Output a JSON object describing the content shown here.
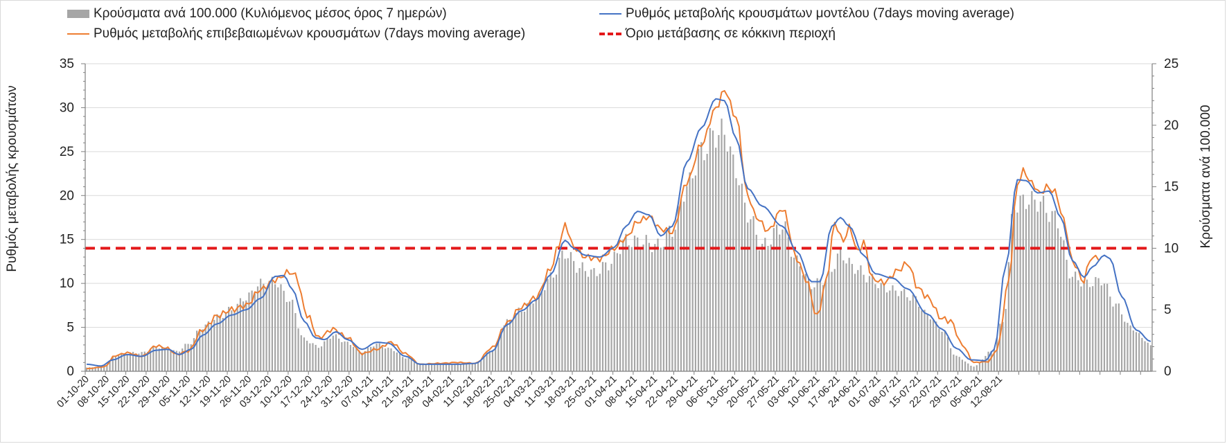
{
  "chart_data": {
    "type": "bar+line",
    "legend": {
      "bars": "Κρούσματα ανά 100.000 (Κυλιόμενος μέσος όρος 7 ημερών)",
      "model": "Ρυθμός μεταβολής κρουσμάτων μοντέλου (7days moving average)",
      "confirmed": "Ρυθμός μεταβολής επιβεβαιωμένων κρουσμάτων (7days moving average)",
      "threshold": "Όριο μετάβασης σε κόκκινη περιοχή"
    },
    "ylabel_left": "Ρυθμός μεταβολής κρουσμάτων",
    "ylabel_right": "Κρούσματα ανά 100.000",
    "ylim_left": [
      0,
      35
    ],
    "ylim_right": [
      0,
      25
    ],
    "yticks_left": [
      "0",
      "5",
      "10",
      "15",
      "20",
      "25",
      "30",
      "35"
    ],
    "yticks_right": [
      "0",
      "5",
      "10",
      "15",
      "20",
      "25"
    ],
    "xticks": [
      "01-10-20",
      "08-10-20",
      "15-10-20",
      "22-10-20",
      "29-10-20",
      "05-11-20",
      "12-11-20",
      "19-11-20",
      "26-11-20",
      "03-12-20",
      "10-12-20",
      "17-12-20",
      "24-12-20",
      "31-12-20",
      "07-01-21",
      "14-01-21",
      "21-01-21",
      "28-01-21",
      "04-02-21",
      "11-02-21",
      "18-02-21",
      "25-02-21",
      "04-03-21",
      "11-03-21",
      "18-03-21",
      "25-03-21",
      "01-04-21",
      "08-04-21",
      "15-04-21",
      "22-04-21",
      "29-04-21",
      "06-05-21",
      "13-05-21",
      "20-05-21",
      "27-05-21",
      "03-06-21",
      "10-06-21",
      "17-06-21",
      "24-06-21",
      "01-07-21",
      "08-07-21",
      "15-07-21",
      "22-07-21",
      "29-07-21",
      "05-08-21",
      "12-08-21"
    ],
    "threshold_left": 14,
    "days": 322,
    "bars_anchors": [
      [
        0,
        0.3
      ],
      [
        6,
        0.4
      ],
      [
        10,
        1.3
      ],
      [
        14,
        1.5
      ],
      [
        19,
        1.5
      ],
      [
        24,
        2.0
      ],
      [
        28,
        1.8
      ],
      [
        31,
        1.6
      ],
      [
        35,
        2.2
      ],
      [
        40,
        3.6
      ],
      [
        45,
        4.4
      ],
      [
        50,
        5.0
      ],
      [
        55,
        6.0
      ],
      [
        60,
        7.1
      ],
      [
        65,
        7.3
      ],
      [
        70,
        5.8
      ],
      [
        75,
        2.6
      ],
      [
        80,
        2.0
      ],
      [
        85,
        2.9
      ],
      [
        90,
        2.3
      ],
      [
        95,
        1.6
      ],
      [
        100,
        2.2
      ],
      [
        105,
        1.8
      ],
      [
        110,
        1.1
      ],
      [
        115,
        0.6
      ],
      [
        122,
        0.6
      ],
      [
        128,
        0.6
      ],
      [
        134,
        0.6
      ],
      [
        140,
        1.8
      ],
      [
        145,
        4.0
      ],
      [
        150,
        5.0
      ],
      [
        155,
        5.9
      ],
      [
        160,
        7.6
      ],
      [
        165,
        9.6
      ],
      [
        170,
        8.4
      ],
      [
        175,
        8.0
      ],
      [
        180,
        8.7
      ],
      [
        186,
        10.6
      ],
      [
        192,
        10.5
      ],
      [
        197,
        10.2
      ],
      [
        202,
        11.5
      ],
      [
        207,
        15.0
      ],
      [
        212,
        17.8
      ],
      [
        217,
        19.3
      ],
      [
        220,
        19.4
      ],
      [
        224,
        16.3
      ],
      [
        228,
        12.8
      ],
      [
        233,
        10.2
      ],
      [
        240,
        11.8
      ],
      [
        245,
        8.9
      ],
      [
        250,
        7.0
      ],
      [
        255,
        7.5
      ],
      [
        260,
        9.5
      ],
      [
        265,
        8.4
      ],
      [
        270,
        7.6
      ],
      [
        275,
        6.8
      ],
      [
        280,
        6.5
      ],
      [
        285,
        6.0
      ],
      [
        290,
        4.6
      ],
      [
        295,
        3.4
      ],
      [
        300,
        1.2
      ],
      [
        306,
        0.4
      ],
      [
        312,
        1.6
      ],
      [
        316,
        4.0
      ],
      [
        320,
        13.5
      ],
      [
        324,
        13.9
      ],
      [
        328,
        13.8
      ],
      [
        334,
        12.5
      ],
      [
        340,
        7.7
      ],
      [
        345,
        7.1
      ],
      [
        350,
        7.4
      ],
      [
        355,
        5.4
      ],
      [
        360,
        3.6
      ],
      [
        365,
        2.6
      ],
      [
        367,
        2.0
      ]
    ],
    "confirmed_anchors": [
      [
        0,
        0.3
      ],
      [
        6,
        0.5
      ],
      [
        10,
        1.8
      ],
      [
        14,
        2.1
      ],
      [
        19,
        1.7
      ],
      [
        24,
        2.9
      ],
      [
        28,
        2.6
      ],
      [
        31,
        1.9
      ],
      [
        35,
        2.3
      ],
      [
        40,
        4.7
      ],
      [
        45,
        6.3
      ],
      [
        50,
        7.0
      ],
      [
        55,
        7.5
      ],
      [
        60,
        9.3
      ],
      [
        65,
        10.4
      ],
      [
        70,
        11.3
      ],
      [
        72,
        10.9
      ],
      [
        76,
        6.4
      ],
      [
        80,
        3.8
      ],
      [
        85,
        4.8
      ],
      [
        90,
        3.8
      ],
      [
        95,
        2.0
      ],
      [
        100,
        2.5
      ],
      [
        105,
        3.3
      ],
      [
        110,
        2.0
      ],
      [
        115,
        0.8
      ],
      [
        122,
        0.9
      ],
      [
        128,
        1.0
      ],
      [
        134,
        0.9
      ],
      [
        140,
        2.7
      ],
      [
        145,
        5.5
      ],
      [
        150,
        7.3
      ],
      [
        155,
        8.4
      ],
      [
        160,
        11.6
      ],
      [
        163,
        14.5
      ],
      [
        165,
        16.7
      ],
      [
        168,
        14.1
      ],
      [
        172,
        13.0
      ],
      [
        177,
        12.8
      ],
      [
        182,
        14.0
      ],
      [
        186,
        15.2
      ],
      [
        190,
        17.0
      ],
      [
        194,
        17.6
      ],
      [
        198,
        16.2
      ],
      [
        202,
        15.8
      ],
      [
        207,
        21.5
      ],
      [
        212,
        25.8
      ],
      [
        217,
        29.9
      ],
      [
        220,
        32.0
      ],
      [
        224,
        28.9
      ],
      [
        228,
        20.0
      ],
      [
        231,
        17.5
      ],
      [
        235,
        16.0
      ],
      [
        240,
        18.5
      ],
      [
        245,
        12.8
      ],
      [
        248,
        10.5
      ],
      [
        252,
        6.2
      ],
      [
        255,
        10.2
      ],
      [
        258,
        16.8
      ],
      [
        261,
        14.8
      ],
      [
        263,
        16.4
      ],
      [
        266,
        13.6
      ],
      [
        268,
        14.7
      ],
      [
        271,
        10.5
      ],
      [
        275,
        10.1
      ],
      [
        280,
        11.5
      ],
      [
        283,
        12.3
      ],
      [
        287,
        9.4
      ],
      [
        290,
        8.4
      ],
      [
        295,
        6.0
      ],
      [
        298,
        5.7
      ],
      [
        302,
        3.0
      ],
      [
        306,
        1.0
      ],
      [
        311,
        1.1
      ],
      [
        314,
        2.5
      ],
      [
        318,
        10.2
      ],
      [
        321,
        21.2
      ],
      [
        323,
        22.8
      ],
      [
        326,
        21.4
      ],
      [
        329,
        20.2
      ],
      [
        331,
        21.0
      ],
      [
        334,
        20.4
      ],
      [
        337,
        17.2
      ],
      [
        340,
        12.5
      ],
      [
        344,
        10.2
      ],
      [
        346,
        12.8
      ],
      [
        349,
        13.0
      ]
    ],
    "model_anchors": [
      [
        0,
        0.8
      ],
      [
        5,
        0.6
      ],
      [
        9,
        1.3
      ],
      [
        14,
        1.9
      ],
      [
        19,
        1.7
      ],
      [
        24,
        2.4
      ],
      [
        28,
        2.5
      ],
      [
        32,
        1.9
      ],
      [
        36,
        2.5
      ],
      [
        40,
        4.1
      ],
      [
        45,
        5.4
      ],
      [
        50,
        6.4
      ],
      [
        55,
        7.0
      ],
      [
        60,
        8.3
      ],
      [
        65,
        10.8
      ],
      [
        68,
        10.9
      ],
      [
        71,
        9.3
      ],
      [
        75,
        5.7
      ],
      [
        79,
        3.8
      ],
      [
        82,
        3.6
      ],
      [
        86,
        4.5
      ],
      [
        90,
        3.6
      ],
      [
        95,
        2.5
      ],
      [
        100,
        3.3
      ],
      [
        104,
        3.2
      ],
      [
        110,
        1.7
      ],
      [
        115,
        0.8
      ],
      [
        122,
        0.8
      ],
      [
        128,
        0.8
      ],
      [
        134,
        0.9
      ],
      [
        140,
        2.3
      ],
      [
        145,
        5.3
      ],
      [
        150,
        6.9
      ],
      [
        155,
        8.1
      ],
      [
        160,
        11.0
      ],
      [
        165,
        14.9
      ],
      [
        168,
        14.0
      ],
      [
        172,
        13.2
      ],
      [
        177,
        13.0
      ],
      [
        182,
        14.1
      ],
      [
        186,
        16.5
      ],
      [
        190,
        18.2
      ],
      [
        194,
        17.8
      ],
      [
        198,
        15.4
      ],
      [
        202,
        16.5
      ],
      [
        207,
        23.8
      ],
      [
        212,
        27.7
      ],
      [
        217,
        31.0
      ],
      [
        220,
        30.8
      ],
      [
        224,
        26.5
      ],
      [
        228,
        20.8
      ],
      [
        233,
        18.8
      ],
      [
        240,
        16.5
      ],
      [
        245,
        13.6
      ],
      [
        250,
        10.2
      ],
      [
        253,
        10.2
      ],
      [
        257,
        16.5
      ],
      [
        260,
        17.5
      ],
      [
        263,
        16.5
      ],
      [
        268,
        13.2
      ],
      [
        272,
        11.1
      ],
      [
        278,
        10.6
      ],
      [
        283,
        9.4
      ],
      [
        290,
        6.5
      ],
      [
        295,
        4.8
      ],
      [
        300,
        2.6
      ],
      [
        305,
        1.3
      ],
      [
        310,
        1.2
      ],
      [
        313,
        2.5
      ],
      [
        317,
        12.0
      ],
      [
        321,
        21.8
      ],
      [
        324,
        21.7
      ],
      [
        328,
        20.3
      ],
      [
        332,
        20.5
      ],
      [
        336,
        17.5
      ],
      [
        340,
        12.6
      ],
      [
        344,
        10.7
      ],
      [
        347,
        11.9
      ],
      [
        351,
        13.2
      ],
      [
        353,
        12.8
      ],
      [
        357,
        8.5
      ],
      [
        362,
        4.7
      ],
      [
        367,
        3.4
      ]
    ]
  }
}
